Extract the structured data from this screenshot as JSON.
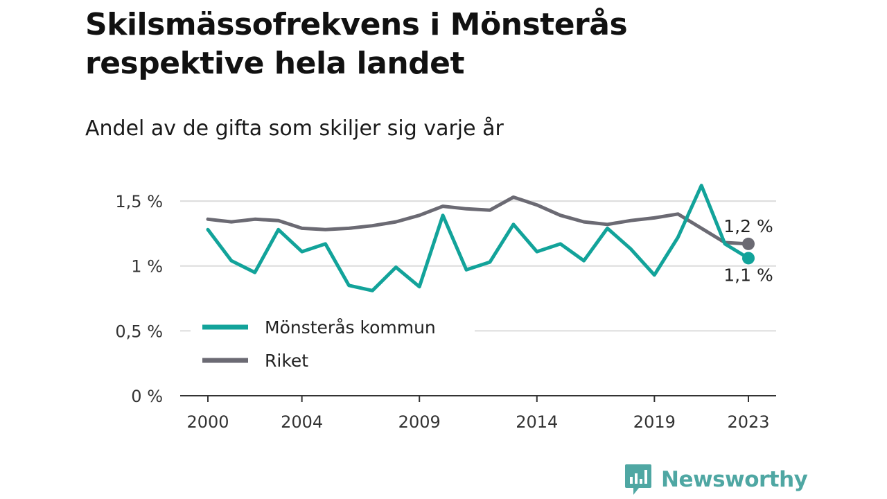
{
  "chart_data": {
    "type": "line",
    "title": "Skilsmässofrekvens i Mönsterås respektive hela landet",
    "subtitle": "Andel av de gifta som skiljer sig varje år",
    "x": [
      2000,
      2001,
      2002,
      2003,
      2004,
      2005,
      2006,
      2007,
      2008,
      2009,
      2010,
      2011,
      2012,
      2013,
      2014,
      2015,
      2016,
      2017,
      2018,
      2019,
      2020,
      2021,
      2022,
      2023
    ],
    "xlim": [
      1999,
      2024
    ],
    "x_ticks": [
      2000,
      2004,
      2009,
      2014,
      2019,
      2023
    ],
    "x_tick_labels": [
      "2000",
      "2004",
      "2009",
      "2014",
      "2019",
      "2023"
    ],
    "ylim": [
      0,
      1.65
    ],
    "y_ticks": [
      0,
      0.5,
      1,
      1.5
    ],
    "y_tick_labels": [
      "0 %",
      "0,5 %",
      "1 %",
      "1,5 %"
    ],
    "grid": true,
    "legend_position": "bottom-left",
    "series": [
      {
        "name": "Mönsterås kommun",
        "color": "#12a39a",
        "values": [
          1.28,
          1.04,
          0.95,
          1.28,
          1.11,
          1.17,
          0.85,
          0.81,
          0.99,
          0.84,
          1.39,
          0.97,
          1.03,
          1.32,
          1.11,
          1.17,
          1.04,
          1.29,
          1.13,
          0.93,
          1.22,
          1.62,
          1.17,
          1.06
        ],
        "end_label": "1,1 %"
      },
      {
        "name": "Riket",
        "color": "#6b6a73",
        "values": [
          1.36,
          1.34,
          1.36,
          1.35,
          1.29,
          1.28,
          1.29,
          1.31,
          1.34,
          1.39,
          1.46,
          1.44,
          1.43,
          1.53,
          1.47,
          1.39,
          1.34,
          1.32,
          1.35,
          1.37,
          1.4,
          1.29,
          1.18,
          1.17
        ],
        "end_label": "1,2 %"
      }
    ]
  },
  "brand": {
    "name": "Newsworthy",
    "color": "#4fa7a3",
    "icon": "newsworthy-logo-icon"
  }
}
